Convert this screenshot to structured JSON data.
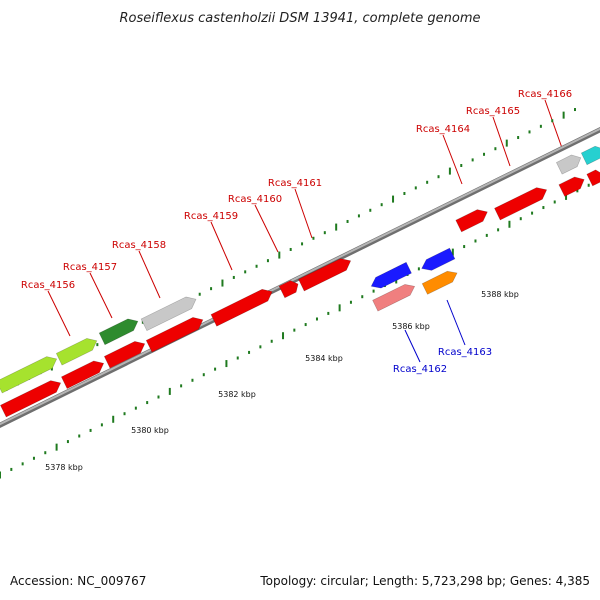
{
  "title": "Roseiflexus castenholzii DSM 13941, complete genome",
  "footer": {
    "accession": "Accession: NC_009767",
    "topology": "Topology: circular; Length: 5,723,298 bp; Genes: 4,385"
  },
  "colors": {
    "background": "#ffffff",
    "backbone": "#8c8c8c",
    "forward_gene": "#ee0000",
    "reverse_gene": "#1a1aff",
    "gene_label_red": "#cc0000",
    "gene_label_blue": "#0000cc",
    "tick_green": "#1f7a1f",
    "title": "#222222"
  },
  "scale_labels": [
    "5378 kbp",
    "5380 kbp",
    "5382 kbp",
    "5384 kbp",
    "5386 kbp",
    "5388 kbp"
  ],
  "gene_labels": [
    {
      "text": "Rcas_4156",
      "color": "red"
    },
    {
      "text": "Rcas_4157",
      "color": "red"
    },
    {
      "text": "Rcas_4158",
      "color": "red"
    },
    {
      "text": "Rcas_4159",
      "color": "red"
    },
    {
      "text": "Rcas_4160",
      "color": "red"
    },
    {
      "text": "Rcas_4161",
      "color": "red"
    },
    {
      "text": "Rcas_4162",
      "color": "blue"
    },
    {
      "text": "Rcas_4163",
      "color": "blue"
    },
    {
      "text": "Rcas_4164",
      "color": "red"
    },
    {
      "text": "Rcas_4165",
      "color": "red"
    },
    {
      "text": "Rcas_4166",
      "color": "red"
    }
  ]
}
